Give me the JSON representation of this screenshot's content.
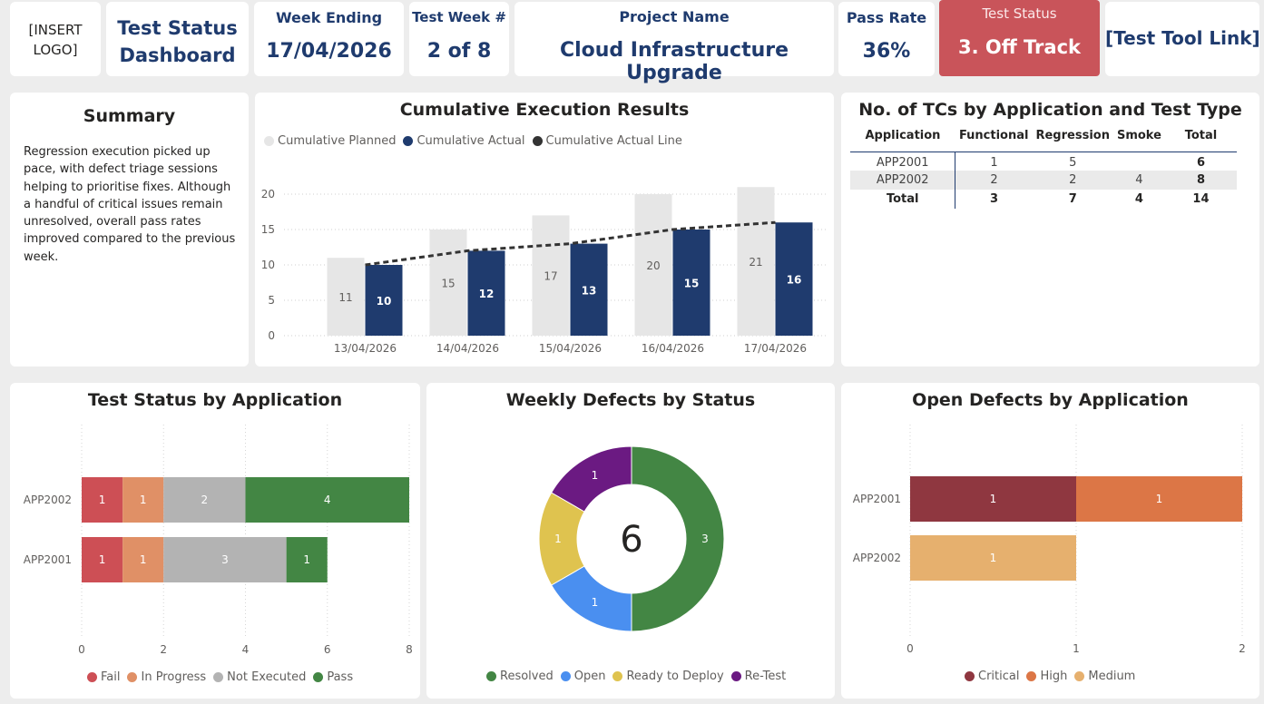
{
  "header": {
    "logo_text": "[INSERT LOGO]",
    "dashboard_title": "Test Status Dashboard",
    "week_ending_label": "Week Ending",
    "week_ending_value": "17/04/2026",
    "test_week_label": "Test Week #",
    "test_week_value": "2 of 8",
    "project_label": "Project Name",
    "project_value": "Cloud Infrastructure Upgrade",
    "pass_rate_label": "Pass Rate",
    "pass_rate_value": "36%",
    "test_status_label": "Test Status",
    "test_status_value": "3. Off Track",
    "test_tool_link": "[Test Tool Link]"
  },
  "summary": {
    "title": "Summary",
    "text": "Regression execution picked up pace, with defect triage sessions helping to prioritise fixes. Although a handful of critical issues remain unresolved, overall pass rates improved compared to the previous week."
  },
  "tc_table": {
    "title": "No. of TCs by Application and Test Type",
    "columns": [
      "Application",
      "Functional",
      "Regression",
      "Smoke",
      "Total"
    ],
    "rows": [
      [
        "APP2001",
        "1",
        "5",
        "",
        "6"
      ],
      [
        "APP2002",
        "2",
        "2",
        "4",
        "8"
      ]
    ],
    "total_row": [
      "Total",
      "3",
      "7",
      "4",
      "14"
    ]
  },
  "colors": {
    "navy": "#1f3b6e",
    "planned_grey": "#e6e6e6",
    "status_red": "#c9545a",
    "fail": "#cd4f55",
    "in_progress": "#e09066",
    "not_executed": "#b3b3b3",
    "pass": "#438644",
    "resolved": "#438644",
    "open": "#4a8ff0",
    "ready_to_deploy": "#dfc34f",
    "retest": "#6b1a82",
    "critical": "#8f3740",
    "high": "#dc7646",
    "medium": "#e6b06e"
  },
  "chart_data": [
    {
      "type": "bar",
      "title": "Cumulative Execution Results",
      "categories": [
        "13/04/2026",
        "14/04/2026",
        "15/04/2026",
        "16/04/2026",
        "17/04/2026"
      ],
      "series": [
        {
          "name": "Cumulative Planned",
          "values": [
            11,
            15,
            17,
            20,
            21
          ],
          "color": "#e6e6e6"
        },
        {
          "name": "Cumulative Actual",
          "values": [
            10,
            12,
            13,
            15,
            16
          ],
          "color": "#1f3b6e"
        },
        {
          "name": "Cumulative Actual Line",
          "values": [
            10,
            12,
            13,
            15,
            16
          ],
          "color": "#333333",
          "style": "dashed line"
        }
      ],
      "yticks": [
        0,
        5,
        10,
        15,
        20
      ],
      "ylim": [
        0,
        22
      ],
      "legend": "top-left",
      "grid": true
    },
    {
      "type": "bar",
      "orientation": "horizontal",
      "stacked": true,
      "title": "Test Status by Application",
      "categories": [
        "APP2002",
        "APP2001"
      ],
      "series": [
        {
          "name": "Fail",
          "values": [
            1,
            1
          ],
          "color": "#cd4f55"
        },
        {
          "name": "In Progress",
          "values": [
            1,
            1
          ],
          "color": "#e09066"
        },
        {
          "name": "Not Executed",
          "values": [
            2,
            3
          ],
          "color": "#b3b3b3"
        },
        {
          "name": "Pass",
          "values": [
            4,
            1
          ],
          "color": "#438644"
        }
      ],
      "xticks": [
        0,
        2,
        4,
        6,
        8
      ],
      "xlim": [
        0,
        8
      ],
      "legend": "bottom",
      "grid": true
    },
    {
      "type": "pie",
      "donut": true,
      "title": "Weekly Defects by Status",
      "center_label": "6",
      "slices": [
        {
          "name": "Resolved",
          "value": 3,
          "color": "#438644"
        },
        {
          "name": "Open",
          "value": 1,
          "color": "#4a8ff0"
        },
        {
          "name": "Ready to Deploy",
          "value": 1,
          "color": "#dfc34f"
        },
        {
          "name": "Re-Test",
          "value": 1,
          "color": "#6b1a82"
        }
      ],
      "legend": "bottom"
    },
    {
      "type": "bar",
      "orientation": "horizontal",
      "stacked": true,
      "title": "Open Defects by Application",
      "categories": [
        "APP2001",
        "APP2002"
      ],
      "series": [
        {
          "name": "Critical",
          "values": [
            1,
            0
          ],
          "color": "#8f3740"
        },
        {
          "name": "High",
          "values": [
            1,
            0
          ],
          "color": "#dc7646"
        },
        {
          "name": "Medium",
          "values": [
            0,
            1
          ],
          "color": "#e6b06e"
        }
      ],
      "xticks": [
        0,
        1,
        2
      ],
      "xlim": [
        0,
        2
      ],
      "legend": "bottom",
      "grid": true
    }
  ]
}
